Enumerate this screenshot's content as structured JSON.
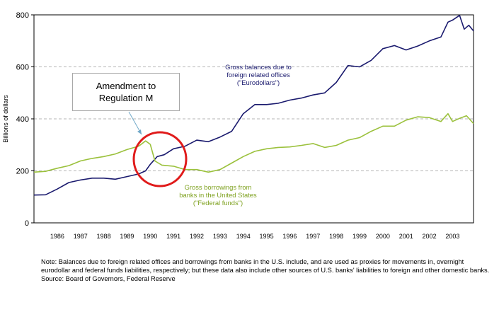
{
  "chart_data": {
    "type": "line",
    "title": "",
    "xlabel": "",
    "ylabel": "Billions of dollars",
    "ylim": [
      0,
      800
    ],
    "yticks": [
      0,
      200,
      400,
      600,
      800
    ],
    "xlim": [
      1985.0,
      2003.9
    ],
    "xtick_labels": [
      "1986",
      "1987",
      "1988",
      "1989",
      "1990",
      "1991",
      "1992",
      "1993",
      "1994",
      "1995",
      "1996",
      "1997",
      "1998",
      "1999",
      "2000",
      "2001",
      "2002",
      "2003"
    ],
    "grid": "horizontal dashed at 200, 400, 600",
    "series": [
      {
        "name": "Gross balances due to foreign related offices (\"Eurodollars\")",
        "color": "#1a1a6e",
        "x": [
          1985.0,
          1985.5,
          1986.0,
          1986.5,
          1987.0,
          1987.5,
          1988.0,
          1988.5,
          1989.0,
          1989.5,
          1989.8,
          1990.0,
          1990.3,
          1990.6,
          1991.0,
          1991.5,
          1992.0,
          1992.5,
          1993.0,
          1993.5,
          1994.0,
          1994.5,
          1995.0,
          1995.5,
          1996.0,
          1996.5,
          1997.0,
          1997.5,
          1998.0,
          1998.5,
          1999.0,
          1999.5,
          2000.0,
          2000.5,
          2001.0,
          2001.5,
          2002.0,
          2002.5,
          2002.8,
          2003.0,
          2003.3,
          2003.5,
          2003.7,
          2003.9
        ],
        "values": [
          107,
          108,
          130,
          155,
          165,
          172,
          172,
          168,
          178,
          188,
          200,
          225,
          255,
          262,
          285,
          295,
          318,
          312,
          330,
          352,
          420,
          455,
          455,
          460,
          472,
          480,
          492,
          500,
          540,
          605,
          600,
          625,
          670,
          682,
          665,
          680,
          700,
          715,
          772,
          780,
          798,
          745,
          760,
          738
        ]
      },
      {
        "name": "Gross borrowings from banks in the United States (\"Federal funds\")",
        "color": "#9bc13c",
        "x": [
          1985.0,
          1985.5,
          1986.0,
          1986.5,
          1987.0,
          1987.5,
          1988.0,
          1988.5,
          1989.0,
          1989.5,
          1989.8,
          1990.0,
          1990.2,
          1990.5,
          1991.0,
          1991.5,
          1992.0,
          1992.5,
          1993.0,
          1993.5,
          1994.0,
          1994.5,
          1995.0,
          1995.5,
          1996.0,
          1996.5,
          1997.0,
          1997.5,
          1998.0,
          1998.5,
          1999.0,
          1999.5,
          2000.0,
          2000.5,
          2001.0,
          2001.5,
          2002.0,
          2002.5,
          2002.8,
          2003.0,
          2003.3,
          2003.6,
          2003.9
        ],
        "values": [
          195,
          198,
          210,
          220,
          238,
          248,
          255,
          265,
          282,
          295,
          315,
          302,
          238,
          222,
          218,
          205,
          205,
          195,
          205,
          230,
          255,
          275,
          285,
          290,
          292,
          298,
          305,
          290,
          298,
          318,
          328,
          352,
          372,
          372,
          395,
          408,
          405,
          390,
          420,
          390,
          402,
          412,
          382
        ]
      }
    ],
    "annotations": [
      {
        "text": "Amendment to\nRegulation M"
      },
      {
        "text": "Gross balances due to\nforeign related offices\n(\"Eurodollars\")"
      },
      {
        "text": "Gross borrowings from\nbanks in the United States\n(\"Federal funds\")"
      }
    ],
    "highlight": {
      "shape": "circle",
      "color": "#e01b1b"
    }
  },
  "note": "Note: Balances due to foreign related offices and borrowings from banks in the U.S. include, and are used as proxies for movements in, overnight eurodollar and federal funds liabilities, respectively; but these data also include other sources of U.S. banks' liabilities to foreign and other domestic banks.  Source: Board of Governors, Federal Reserve"
}
